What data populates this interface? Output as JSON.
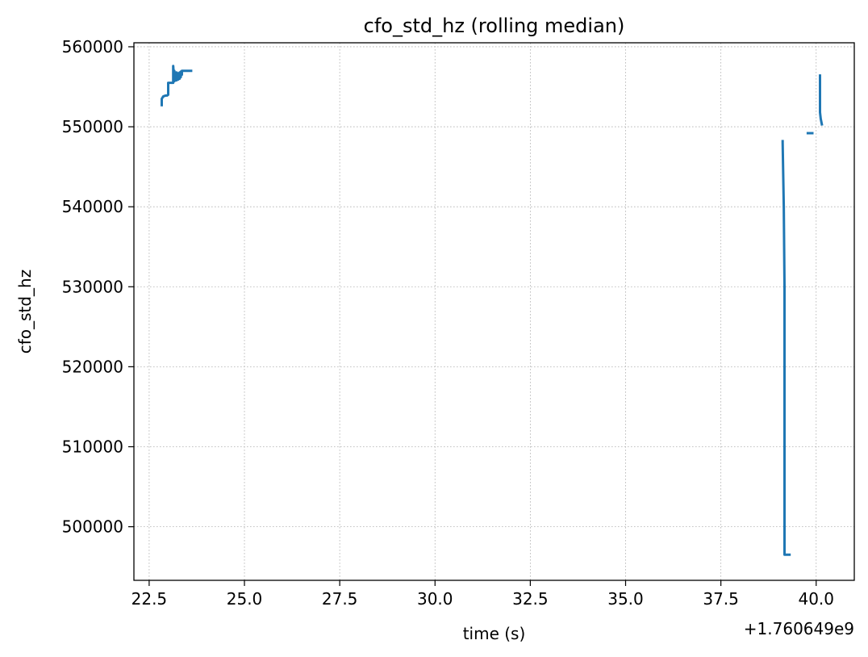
{
  "chart_data": {
    "type": "line",
    "title": "cfo_std_hz (rolling median)",
    "xlabel": "time (s)",
    "ylabel": "cfo_std_hz",
    "x_offset_label": "+1.760649e9",
    "xlim": [
      22.1,
      41.0
    ],
    "ylim": [
      493300,
      560500
    ],
    "x_ticks": [
      22.5,
      25.0,
      27.5,
      30.0,
      32.5,
      35.0,
      37.5,
      40.0
    ],
    "x_tick_labels": [
      "22.5",
      "25.0",
      "27.5",
      "30.0",
      "32.5",
      "35.0",
      "37.5",
      "40.0"
    ],
    "y_ticks": [
      500000,
      510000,
      520000,
      530000,
      540000,
      550000,
      560000
    ],
    "y_tick_labels": [
      "500000",
      "510000",
      "520000",
      "530000",
      "540000",
      "550000",
      "560000"
    ],
    "grid": true,
    "colors": {
      "line": "#1f77b4",
      "grid": "#b0b0b0",
      "axes": "#000000",
      "background": "#ffffff"
    },
    "series": [
      {
        "segments": [
          {
            "x": [
              22.83,
              22.83,
              22.87,
              22.93,
              22.97,
              23.0,
              23.0,
              23.05,
              23.1,
              23.13,
              23.13,
              23.16,
              23.16,
              23.19,
              23.19,
              23.22,
              23.22,
              23.26,
              23.26,
              23.3,
              23.3,
              23.33,
              23.33,
              23.36,
              23.36,
              23.45,
              23.6
            ],
            "y": [
              552700,
              553500,
              553800,
              553900,
              553900,
              554000,
              555500,
              555500,
              555500,
              555500,
              557600,
              555700,
              557000,
              555800,
              556800,
              555800,
              556800,
              555900,
              556700,
              556000,
              556800,
              556200,
              556900,
              556500,
              557000,
              557000,
              557000
            ]
          },
          {
            "x": [
              39.12,
              39.12,
              39.15,
              39.17,
              39.17,
              39.3
            ],
            "y": [
              548200,
              548000,
              540000,
              530000,
              496500,
              496500
            ]
          },
          {
            "x": [
              39.78,
              39.9
            ],
            "y": [
              549200,
              549200
            ]
          },
          {
            "x": [
              40.1,
              40.1,
              40.12,
              40.15
            ],
            "y": [
              556400,
              551800,
              551000,
              550300
            ]
          }
        ]
      }
    ]
  }
}
